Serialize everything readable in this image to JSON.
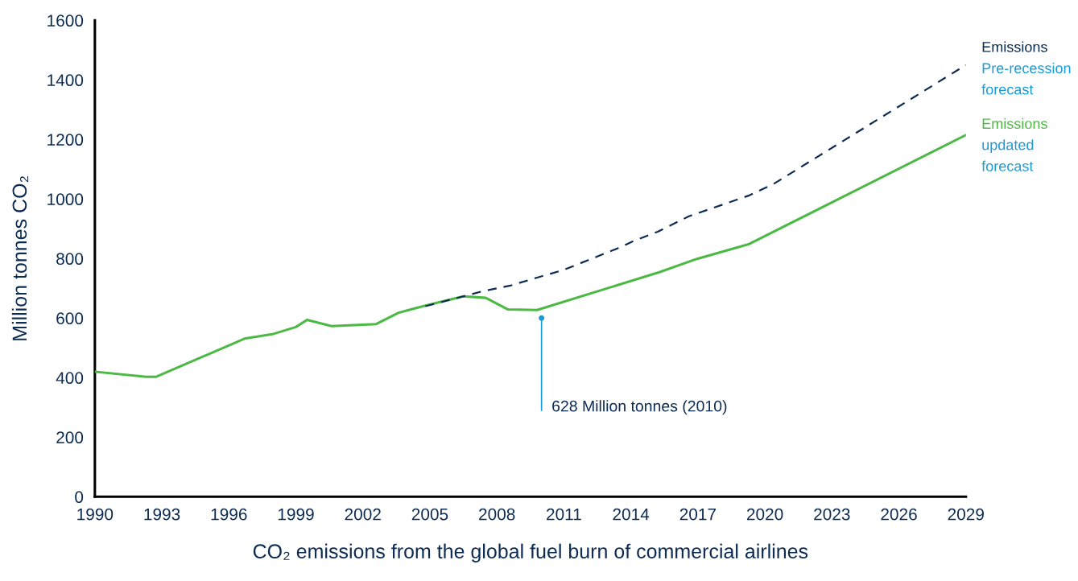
{
  "chart_data": {
    "type": "line",
    "xlabel": "CO₂ emissions from the global fuel burn of commercial airlines",
    "ylabel": "Million tonnes CO₂",
    "xlim": [
      1990,
      2029
    ],
    "xticks": [
      1990,
      1993,
      1996,
      1999,
      2002,
      2005,
      2008,
      2011,
      2014,
      2017,
      2020,
      2023,
      2026,
      2029
    ],
    "ylim": [
      0,
      1600
    ],
    "yticks": [
      0,
      200,
      400,
      600,
      800,
      1000,
      1200,
      1400,
      1600
    ],
    "grid": false,
    "series": [
      {
        "name": "Emissions\nPre-recession\nforecast",
        "color": "#0d2c54",
        "line_style": "dashed",
        "x": [
          2004.8,
          2006.5,
          2007.4,
          2008.6,
          2009.8,
          2011.0,
          2013.4,
          2014.1,
          2015.2,
          2016.6,
          2019.3,
          2020.4,
          2029
        ],
        "values": [
          640,
          673,
          691,
          709,
          736,
          762,
          834,
          858,
          890,
          942,
          1012,
          1051,
          1450
        ]
      },
      {
        "name": "Emissions\nupdated\nforecast",
        "color": "#4cb944",
        "line_style": "solid",
        "x": [
          1990,
          1992.3,
          1992.75,
          1996.7,
          1998.0,
          1999.0,
          1999.5,
          2000.6,
          2002.6,
          2003.6,
          2004.8,
          2006.5,
          2007.5,
          2008.5,
          2009.8,
          2015.3,
          2016.96,
          2019.3,
          2029
        ],
        "values": [
          420,
          403,
          403,
          531,
          547,
          570,
          594,
          573,
          580,
          618,
          642,
          673,
          668,
          629,
          627,
          755,
          799,
          849,
          1215
        ]
      }
    ],
    "annotations": [
      {
        "text": "628 Million tonnes (2010)",
        "x": 2010,
        "y": 600
      }
    ]
  }
}
